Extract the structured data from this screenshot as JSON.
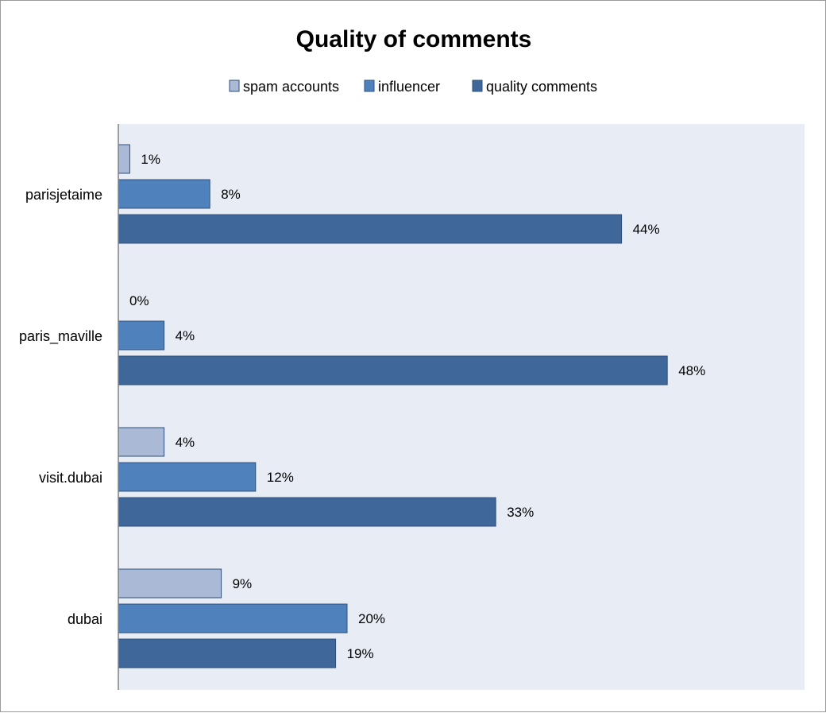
{
  "chart_data": {
    "type": "bar",
    "orientation": "horizontal",
    "title": "Quality of comments",
    "categories": [
      "parisjetaime",
      "paris_maville",
      "visit.dubai",
      "dubai"
    ],
    "series": [
      {
        "name": "spam accounts",
        "values": [
          1,
          0,
          4,
          9
        ],
        "labels": [
          "1%",
          "0%",
          "4%",
          "9%"
        ],
        "color": "#a9b9d6"
      },
      {
        "name": "influencer",
        "values": [
          8,
          4,
          12,
          20
        ],
        "labels": [
          "8%",
          "4%",
          "12%",
          "20%"
        ],
        "color": "#4f81bd"
      },
      {
        "name": "quality comments",
        "values": [
          44,
          48,
          33,
          19
        ],
        "labels": [
          "44%",
          "48%",
          "33%",
          "19%"
        ],
        "color": "#3f679a"
      }
    ],
    "xlim": [
      0,
      60
    ],
    "legend_position": "top",
    "grid": false,
    "plot_background": "#e8edf5"
  }
}
